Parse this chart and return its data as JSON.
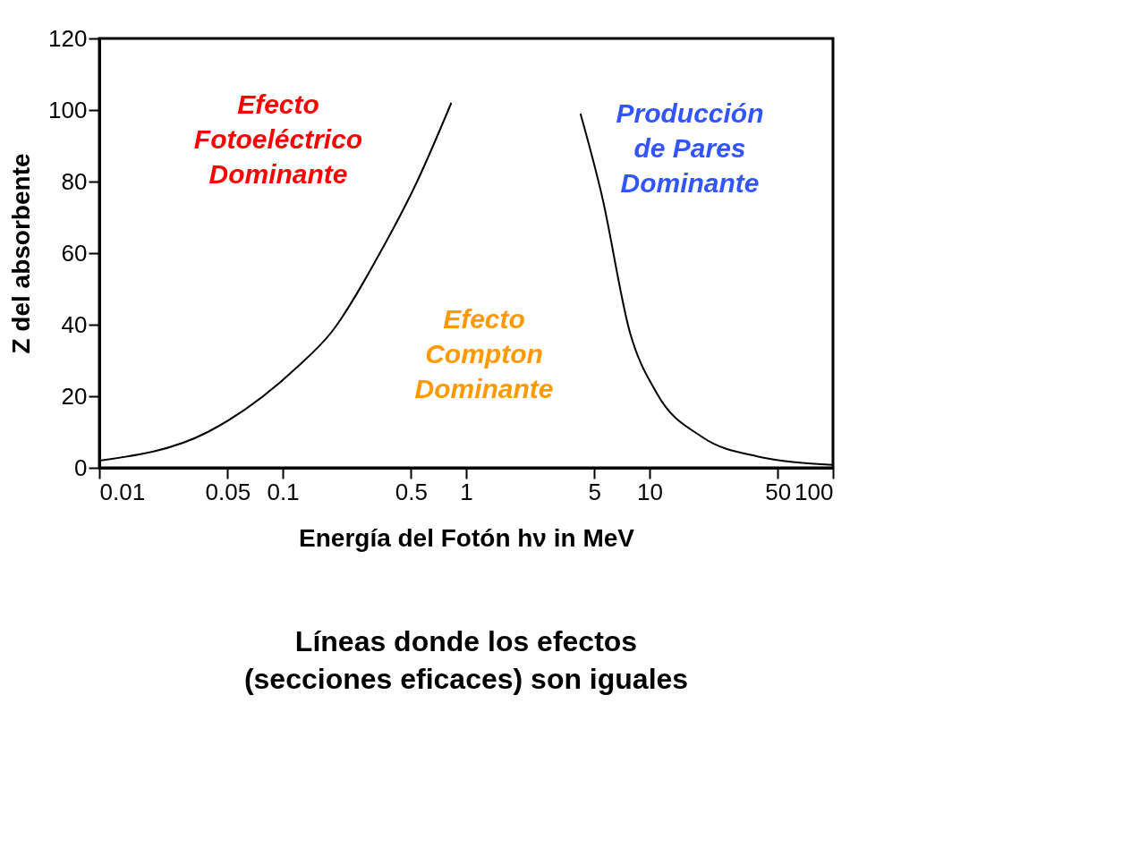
{
  "chart_data": {
    "type": "line",
    "xlabel": "Energía del Fotón hν in MeV",
    "ylabel": "Z del absorbente",
    "log": "x",
    "xlim": [
      0.01,
      100
    ],
    "xticks": [
      0.01,
      0.05,
      0.1,
      0.5,
      1,
      5,
      10,
      50,
      100
    ],
    "ylim": [
      0,
      120
    ],
    "yticks": [
      0,
      20,
      40,
      60,
      80,
      100,
      120
    ],
    "grid": false,
    "marker": "none",
    "line_style": "solid",
    "series": [
      {
        "color": "#000000",
        "x": [
          0.01,
          0.039,
          0.119,
          0.185,
          0.33,
          0.54,
          0.83
        ],
        "values": [
          2,
          10,
          28,
          38,
          59,
          80,
          102
        ]
      },
      {
        "color": "#000000",
        "x": [
          4.2,
          5.5,
          7.8,
          10.9,
          19.5,
          38.6,
          100
        ],
        "values": [
          99,
          76,
          38,
          21,
          8.5,
          3.2,
          0.8
        ]
      }
    ],
    "annotations": [
      "Efecto\nFotoeléctrico\nDominante",
      "Efecto\nCompton\nDominante",
      "Producción\nde Pares\nDominante",
      "Líneas donde los efectos\n(secciones eficaces) son iguales"
    ]
  }
}
